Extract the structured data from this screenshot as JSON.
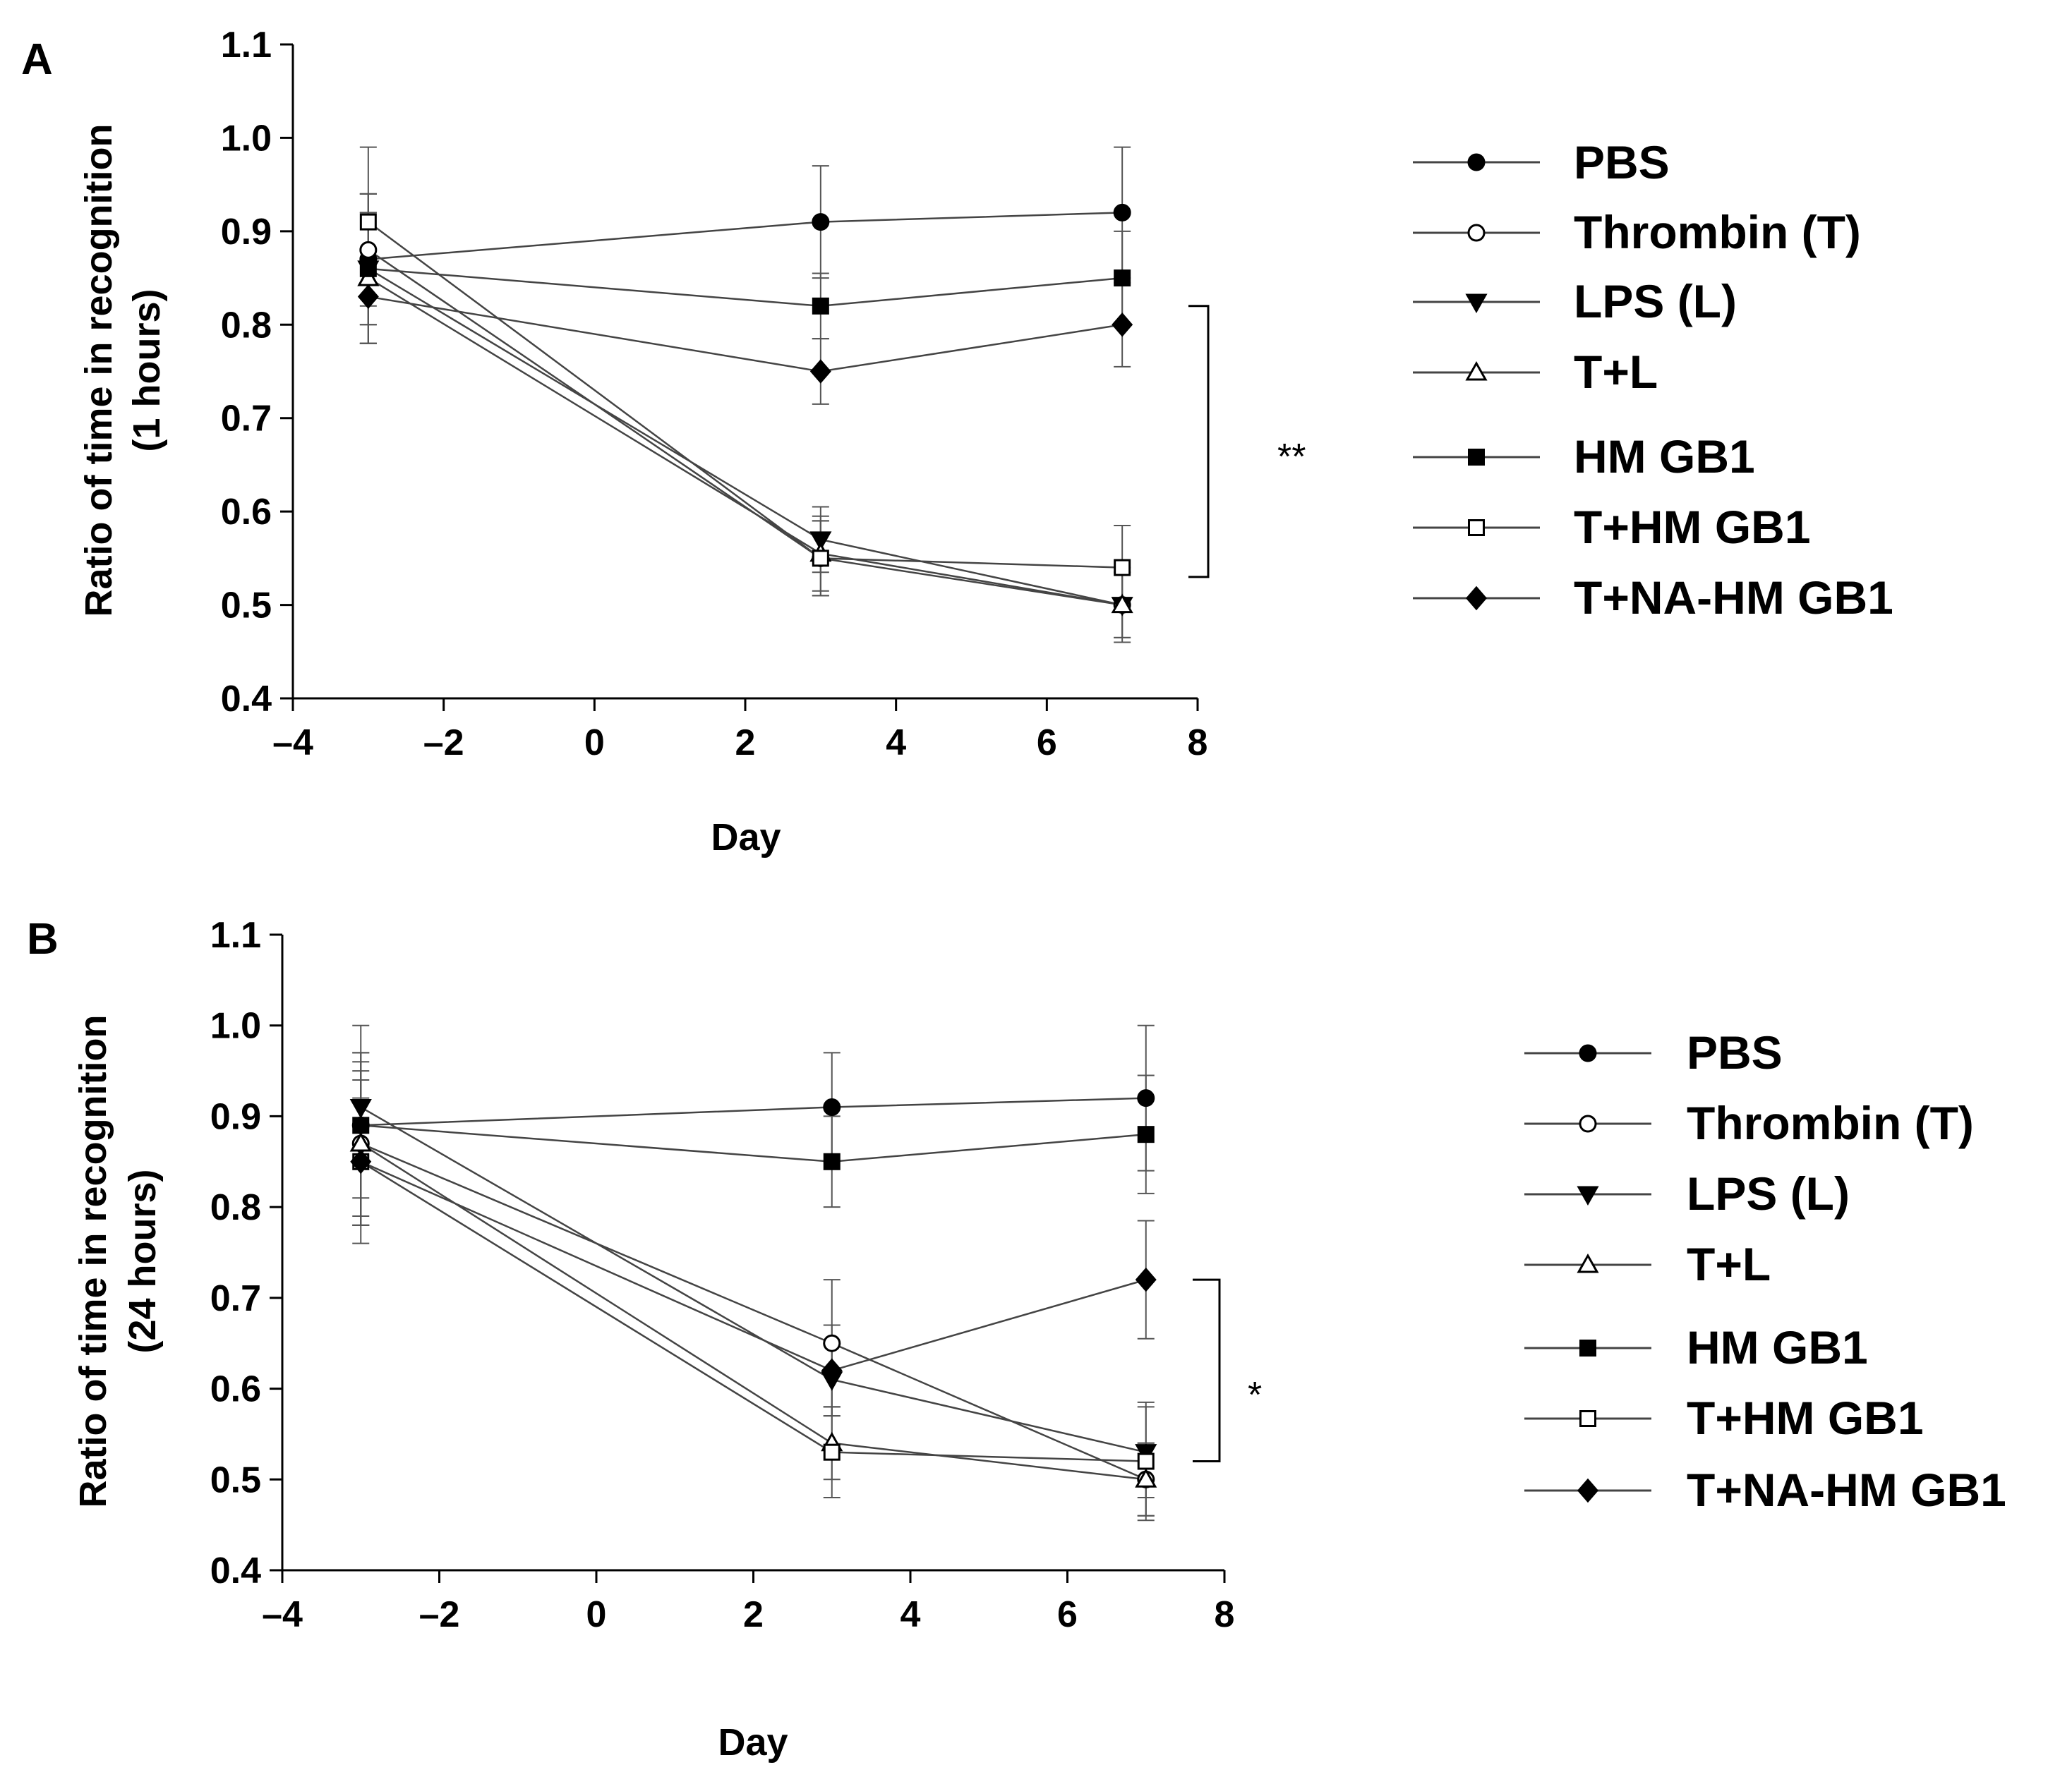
{
  "chart_data": [
    {
      "panel": "A",
      "type": "line",
      "xlabel": "Day",
      "ylabel": [
        "Ratio of time in recognition",
        "(1 hours)"
      ],
      "xlim": [
        -4,
        8
      ],
      "ylim": [
        0.4,
        1.1
      ],
      "xticks": [
        -4,
        -2,
        0,
        2,
        4,
        6,
        8
      ],
      "xtick_labels": [
        "–4",
        "–2",
        "0",
        "2",
        "4",
        "6",
        "8"
      ],
      "yticks": [
        0.4,
        0.5,
        0.6,
        0.7,
        0.8,
        0.9,
        1.0,
        1.1
      ],
      "ytick_labels": [
        "0.4",
        "0.5",
        "0.6",
        "0.7",
        "0.8",
        "0.9",
        "1.0",
        "1.1"
      ],
      "x": [
        -3,
        3,
        7
      ],
      "series": [
        {
          "name": "PBS",
          "marker": "circle-filled",
          "values": [
            0.87,
            0.91,
            0.92
          ],
          "err": [
            0.07,
            0.06,
            0.07
          ]
        },
        {
          "name": "Thrombin (T)",
          "marker": "circle-open",
          "values": [
            0.88,
            0.55,
            0.5
          ],
          "err": [
            0.06,
            0.04,
            0.04
          ]
        },
        {
          "name": "LPS (L)",
          "marker": "triangle-down-filled",
          "values": [
            0.86,
            0.57,
            0.5
          ],
          "err": [
            0.06,
            0.035,
            0.035
          ]
        },
        {
          "name": "T+L",
          "marker": "triangle-up-open",
          "values": [
            0.85,
            0.555,
            0.5
          ],
          "err": [
            0.07,
            0.04,
            0.035
          ]
        },
        {
          "name": "HM GB1",
          "marker": "square-filled",
          "values": [
            0.86,
            0.82,
            0.85
          ],
          "err": [
            0.08,
            0.035,
            0.05
          ]
        },
        {
          "name": "T+HM GB1",
          "marker": "square-open",
          "values": [
            0.91,
            0.55,
            0.54
          ],
          "err": [
            0.08,
            0.04,
            0.045
          ]
        },
        {
          "name": "T+NA-HM GB1",
          "marker": "diamond-filled",
          "values": [
            0.83,
            0.75,
            0.8
          ],
          "err": [
            0.05,
            0.035,
            0.045
          ]
        }
      ],
      "significance": {
        "label": "**",
        "range": [
          0.53,
          0.82
        ]
      }
    },
    {
      "panel": "B",
      "type": "line",
      "xlabel": "Day",
      "ylabel": [
        "Ratio of time in recognition",
        "(24 hours)"
      ],
      "xlim": [
        -4,
        8
      ],
      "ylim": [
        0.4,
        1.1
      ],
      "xticks": [
        -4,
        -2,
        0,
        2,
        4,
        6,
        8
      ],
      "xtick_labels": [
        "–4",
        "–2",
        "0",
        "2",
        "4",
        "6",
        "8"
      ],
      "yticks": [
        0.4,
        0.5,
        0.6,
        0.7,
        0.8,
        0.9,
        1.0,
        1.1
      ],
      "ytick_labels": [
        "0.4",
        "0.5",
        "0.6",
        "0.7",
        "0.8",
        "0.9",
        "1.0",
        "1.1"
      ],
      "x": [
        -3,
        3,
        7
      ],
      "series": [
        {
          "name": "PBS",
          "marker": "circle-filled",
          "values": [
            0.89,
            0.91,
            0.92
          ],
          "err": [
            0.11,
            0.06,
            0.08
          ]
        },
        {
          "name": "Thrombin (T)",
          "marker": "circle-open",
          "values": [
            0.87,
            0.65,
            0.5
          ],
          "err": [
            0.09,
            0.07,
            0.04
          ]
        },
        {
          "name": "LPS (L)",
          "marker": "triangle-down-filled",
          "values": [
            0.91,
            0.61,
            0.53
          ],
          "err": [
            0.06,
            0.04,
            0.05
          ]
        },
        {
          "name": "T+L",
          "marker": "triangle-up-open",
          "values": [
            0.87,
            0.54,
            0.5
          ],
          "err": [
            0.08,
            0.04,
            0.04
          ]
        },
        {
          "name": "HM GB1",
          "marker": "square-filled",
          "values": [
            0.89,
            0.85,
            0.88
          ],
          "err": [
            0.08,
            0.05,
            0.065
          ]
        },
        {
          "name": "T+HM GB1",
          "marker": "square-open",
          "values": [
            0.85,
            0.53,
            0.52
          ],
          "err": [
            0.09,
            0.05,
            0.065
          ]
        },
        {
          "name": "T+NA-HM GB1",
          "marker": "diamond-filled",
          "values": [
            0.85,
            0.62,
            0.72
          ],
          "err": [
            0.07,
            0.05,
            0.065
          ]
        }
      ],
      "significance": {
        "label": "*",
        "range": [
          0.52,
          0.72
        ]
      }
    }
  ]
}
